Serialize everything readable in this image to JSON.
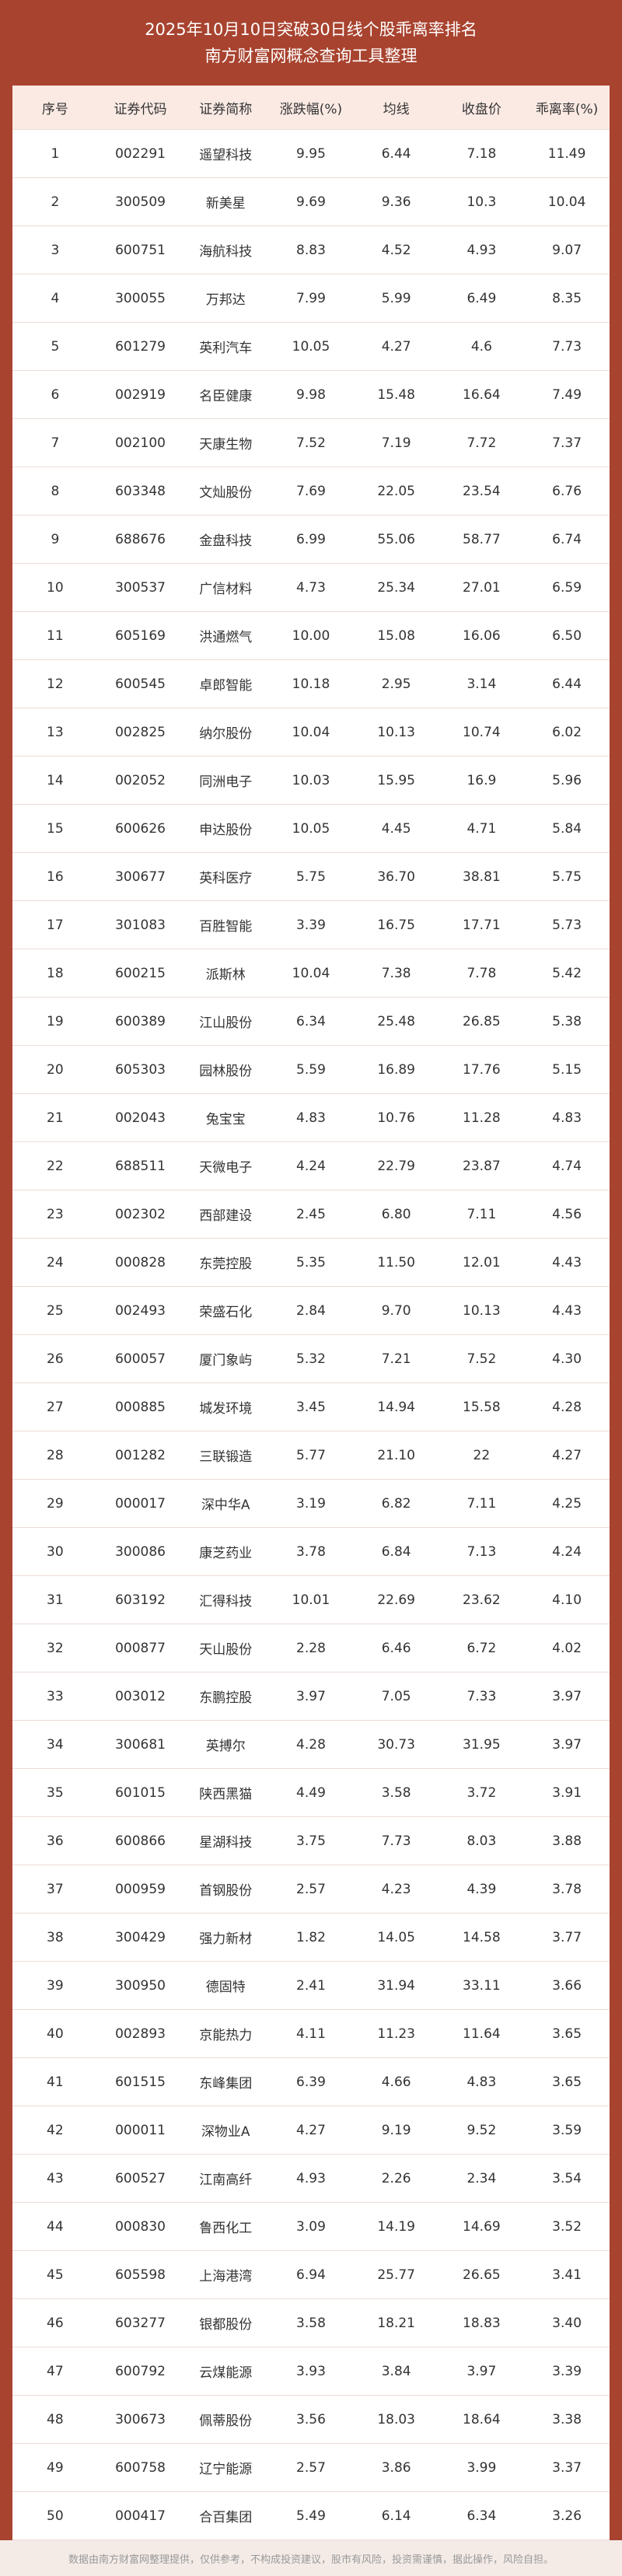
{
  "header": {
    "title": "2025年10月10日突破30日线个股乖离率排名",
    "subtitle": "南方财富网概念查询工具整理"
  },
  "table": {
    "columns": [
      "序号",
      "证券代码",
      "证券简称",
      "涨跌幅(%)",
      "均线",
      "收盘价",
      "乖离率(%)"
    ],
    "rows": [
      [
        "1",
        "002291",
        "遥望科技",
        "9.95",
        "6.44",
        "7.18",
        "11.49"
      ],
      [
        "2",
        "300509",
        "新美星",
        "9.69",
        "9.36",
        "10.3",
        "10.04"
      ],
      [
        "3",
        "600751",
        "海航科技",
        "8.83",
        "4.52",
        "4.93",
        "9.07"
      ],
      [
        "4",
        "300055",
        "万邦达",
        "7.99",
        "5.99",
        "6.49",
        "8.35"
      ],
      [
        "5",
        "601279",
        "英利汽车",
        "10.05",
        "4.27",
        "4.6",
        "7.73"
      ],
      [
        "6",
        "002919",
        "名臣健康",
        "9.98",
        "15.48",
        "16.64",
        "7.49"
      ],
      [
        "7",
        "002100",
        "天康生物",
        "7.52",
        "7.19",
        "7.72",
        "7.37"
      ],
      [
        "8",
        "603348",
        "文灿股份",
        "7.69",
        "22.05",
        "23.54",
        "6.76"
      ],
      [
        "9",
        "688676",
        "金盘科技",
        "6.99",
        "55.06",
        "58.77",
        "6.74"
      ],
      [
        "10",
        "300537",
        "广信材料",
        "4.73",
        "25.34",
        "27.01",
        "6.59"
      ],
      [
        "11",
        "605169",
        "洪通燃气",
        "10.00",
        "15.08",
        "16.06",
        "6.50"
      ],
      [
        "12",
        "600545",
        "卓郎智能",
        "10.18",
        "2.95",
        "3.14",
        "6.44"
      ],
      [
        "13",
        "002825",
        "纳尔股份",
        "10.04",
        "10.13",
        "10.74",
        "6.02"
      ],
      [
        "14",
        "002052",
        "同洲电子",
        "10.03",
        "15.95",
        "16.9",
        "5.96"
      ],
      [
        "15",
        "600626",
        "申达股份",
        "10.05",
        "4.45",
        "4.71",
        "5.84"
      ],
      [
        "16",
        "300677",
        "英科医疗",
        "5.75",
        "36.70",
        "38.81",
        "5.75"
      ],
      [
        "17",
        "301083",
        "百胜智能",
        "3.39",
        "16.75",
        "17.71",
        "5.73"
      ],
      [
        "18",
        "600215",
        "派斯林",
        "10.04",
        "7.38",
        "7.78",
        "5.42"
      ],
      [
        "19",
        "600389",
        "江山股份",
        "6.34",
        "25.48",
        "26.85",
        "5.38"
      ],
      [
        "20",
        "605303",
        "园林股份",
        "5.59",
        "16.89",
        "17.76",
        "5.15"
      ],
      [
        "21",
        "002043",
        "兔宝宝",
        "4.83",
        "10.76",
        "11.28",
        "4.83"
      ],
      [
        "22",
        "688511",
        "天微电子",
        "4.24",
        "22.79",
        "23.87",
        "4.74"
      ],
      [
        "23",
        "002302",
        "西部建设",
        "2.45",
        "6.80",
        "7.11",
        "4.56"
      ],
      [
        "24",
        "000828",
        "东莞控股",
        "5.35",
        "11.50",
        "12.01",
        "4.43"
      ],
      [
        "25",
        "002493",
        "荣盛石化",
        "2.84",
        "9.70",
        "10.13",
        "4.43"
      ],
      [
        "26",
        "600057",
        "厦门象屿",
        "5.32",
        "7.21",
        "7.52",
        "4.30"
      ],
      [
        "27",
        "000885",
        "城发环境",
        "3.45",
        "14.94",
        "15.58",
        "4.28"
      ],
      [
        "28",
        "001282",
        "三联锻造",
        "5.77",
        "21.10",
        "22",
        "4.27"
      ],
      [
        "29",
        "000017",
        "深中华A",
        "3.19",
        "6.82",
        "7.11",
        "4.25"
      ],
      [
        "30",
        "300086",
        "康芝药业",
        "3.78",
        "6.84",
        "7.13",
        "4.24"
      ],
      [
        "31",
        "603192",
        "汇得科技",
        "10.01",
        "22.69",
        "23.62",
        "4.10"
      ],
      [
        "32",
        "000877",
        "天山股份",
        "2.28",
        "6.46",
        "6.72",
        "4.02"
      ],
      [
        "33",
        "003012",
        "东鹏控股",
        "3.97",
        "7.05",
        "7.33",
        "3.97"
      ],
      [
        "34",
        "300681",
        "英搏尔",
        "4.28",
        "30.73",
        "31.95",
        "3.97"
      ],
      [
        "35",
        "601015",
        "陕西黑猫",
        "4.49",
        "3.58",
        "3.72",
        "3.91"
      ],
      [
        "36",
        "600866",
        "星湖科技",
        "3.75",
        "7.73",
        "8.03",
        "3.88"
      ],
      [
        "37",
        "000959",
        "首钢股份",
        "2.57",
        "4.23",
        "4.39",
        "3.78"
      ],
      [
        "38",
        "300429",
        "强力新材",
        "1.82",
        "14.05",
        "14.58",
        "3.77"
      ],
      [
        "39",
        "300950",
        "德固特",
        "2.41",
        "31.94",
        "33.11",
        "3.66"
      ],
      [
        "40",
        "002893",
        "京能热力",
        "4.11",
        "11.23",
        "11.64",
        "3.65"
      ],
      [
        "41",
        "601515",
        "东峰集团",
        "6.39",
        "4.66",
        "4.83",
        "3.65"
      ],
      [
        "42",
        "000011",
        "深物业A",
        "4.27",
        "9.19",
        "9.52",
        "3.59"
      ],
      [
        "43",
        "600527",
        "江南高纤",
        "4.93",
        "2.26",
        "2.34",
        "3.54"
      ],
      [
        "44",
        "000830",
        "鲁西化工",
        "3.09",
        "14.19",
        "14.69",
        "3.52"
      ],
      [
        "45",
        "605598",
        "上海港湾",
        "6.94",
        "25.77",
        "26.65",
        "3.41"
      ],
      [
        "46",
        "603277",
        "银都股份",
        "3.58",
        "18.21",
        "18.83",
        "3.40"
      ],
      [
        "47",
        "600792",
        "云煤能源",
        "3.93",
        "3.84",
        "3.97",
        "3.39"
      ],
      [
        "48",
        "300673",
        "佩蒂股份",
        "3.56",
        "18.03",
        "18.64",
        "3.38"
      ],
      [
        "49",
        "600758",
        "辽宁能源",
        "2.57",
        "3.86",
        "3.99",
        "3.37"
      ],
      [
        "50",
        "000417",
        "合百集团",
        "5.49",
        "6.14",
        "6.34",
        "3.26"
      ]
    ]
  },
  "footer": {
    "text": "数据由南方财富网整理提供，仅供参考，不构成投资建议，股市有风险，投资需谨慎，据此操作，风险自担。"
  }
}
